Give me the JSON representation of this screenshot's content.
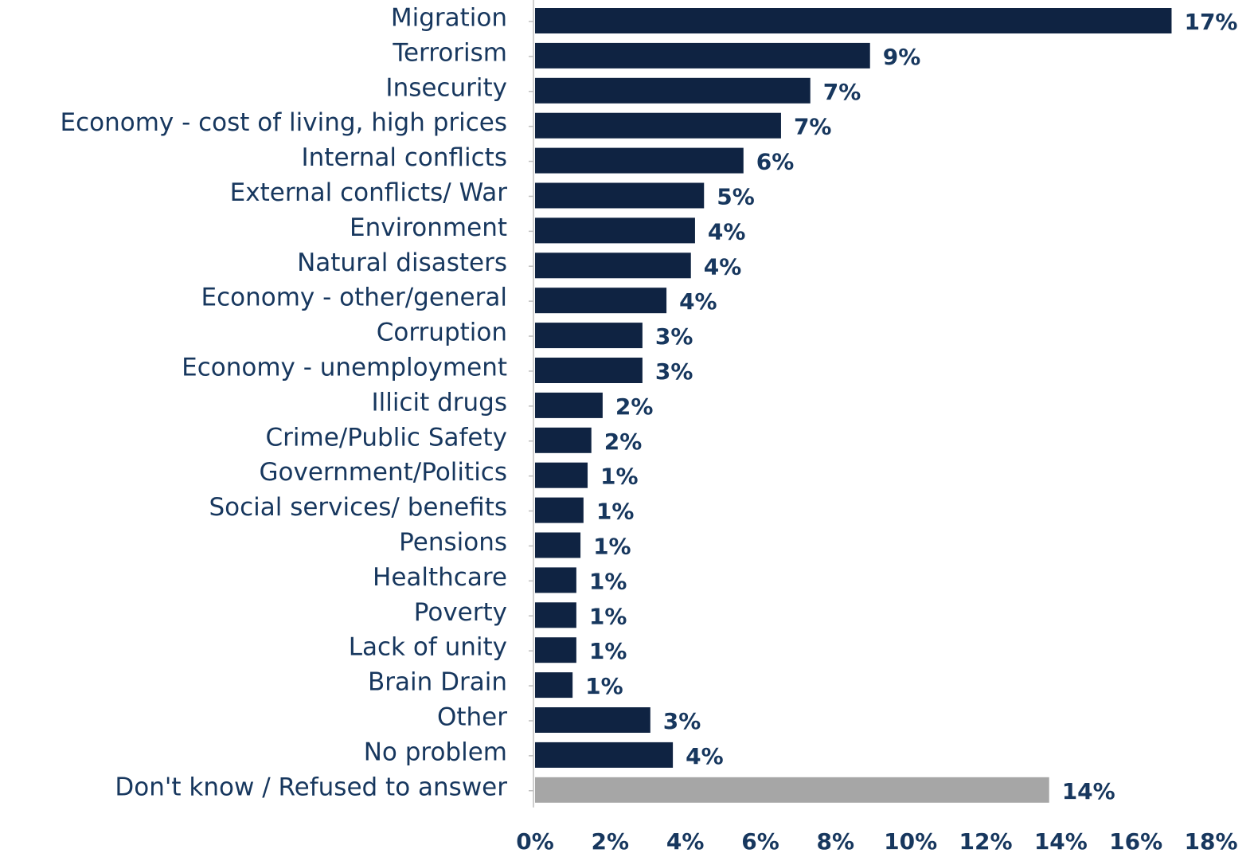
{
  "chart_data": {
    "type": "barh",
    "categories": [
      "Migration",
      "Terrorism",
      "Insecurity",
      "Economy - cost of living, high prices",
      "Internal conflicts",
      "External conflicts/ War",
      "Environment",
      "Natural disasters",
      "Economy - other/general",
      "Corruption",
      "Economy - unemployment",
      "Illicit drugs",
      "Crime/Public Safety",
      "Government/Politics",
      "Social services/ benefits",
      "Pensions",
      "Healthcare",
      "Poverty",
      "Lack of unity",
      "Brain Drain",
      "Other",
      "No problem",
      "Don't know / Refused to answer"
    ],
    "values": [
      16.95,
      8.92,
      7.33,
      6.55,
      5.55,
      4.5,
      4.26,
      4.15,
      3.5,
      2.86,
      2.86,
      1.8,
      1.5,
      1.4,
      1.29,
      1.21,
      1.1,
      1.1,
      1.1,
      1.0,
      3.07,
      3.67,
      13.69
    ],
    "value_labels": [
      "17%",
      "9%",
      "7%",
      "7%",
      "6%",
      "5%",
      "4%",
      "4%",
      "4%",
      "3%",
      "3%",
      "2%",
      "2%",
      "1%",
      "1%",
      "1%",
      "1%",
      "1%",
      "1%",
      "1%",
      "3%",
      "4%",
      "14%"
    ],
    "colors": [
      "#0f2342",
      "#0f2342",
      "#0f2342",
      "#0f2342",
      "#0f2342",
      "#0f2342",
      "#0f2342",
      "#0f2342",
      "#0f2342",
      "#0f2342",
      "#0f2342",
      "#0f2342",
      "#0f2342",
      "#0f2342",
      "#0f2342",
      "#0f2342",
      "#0f2342",
      "#0f2342",
      "#0f2342",
      "#0f2342",
      "#0f2342",
      "#0f2342",
      "#a6a6a6"
    ],
    "xlim": [
      0,
      18
    ],
    "xticks": [
      {
        "value": 0,
        "label": "0%"
      },
      {
        "value": 2,
        "label": "2%"
      },
      {
        "value": 4,
        "label": "4%"
      },
      {
        "value": 6,
        "label": "6%"
      },
      {
        "value": 8,
        "label": "8%"
      },
      {
        "value": 10,
        "label": "10%"
      },
      {
        "value": 12,
        "label": "12%"
      },
      {
        "value": 14,
        "label": "14%"
      },
      {
        "value": 16,
        "label": "16%"
      },
      {
        "value": 18,
        "label": "18%"
      }
    ]
  }
}
